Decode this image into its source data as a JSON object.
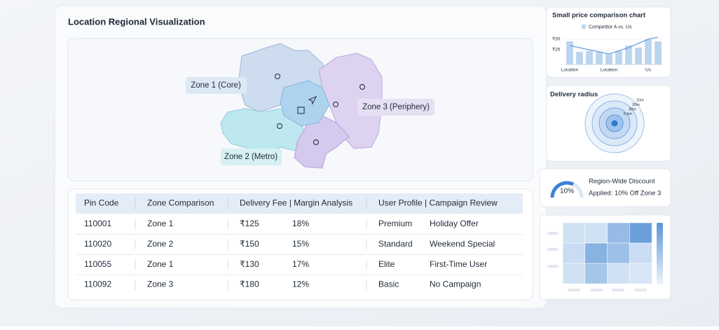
{
  "title": "Location Regional Visualization",
  "map": {
    "zones": [
      {
        "label": "Zone 1 (Core)"
      },
      {
        "label": "Zone 2 (Metro)"
      },
      {
        "label": "Zone 3 (Periphery)"
      }
    ]
  },
  "table": {
    "headers": [
      "Pin Code",
      "Zone Comparison",
      "Delivery Fee | Margin Analysis",
      "User Profile | Campaign Review"
    ],
    "rows": [
      [
        "110001",
        "Zone 1",
        "₹125",
        "18%",
        "Premium",
        "Holiday Offer"
      ],
      [
        "110020",
        "Zone 2",
        "₹150",
        "15%",
        "Standard",
        "Weekend Special"
      ],
      [
        "110055",
        "Zone 1",
        "₹130",
        "17%",
        "Elite",
        "First-Time User"
      ],
      [
        "110092",
        "Zone 3",
        "₹180",
        "12%",
        "Basic",
        "No Campaign"
      ]
    ]
  },
  "price_chart": {
    "type": "bar",
    "title": "Small price comparison chart",
    "categories": [
      "Location",
      null,
      null,
      null,
      "Location",
      null,
      null,
      null,
      "Us",
      null
    ],
    "series": [
      {
        "name": "Competitor A vs. Us",
        "color": "#bcd5ef",
        "values": [
          29,
          24,
          24.5,
          24,
          23,
          24.5,
          27,
          26,
          30,
          29
        ]
      },
      {
        "color": "#6f9fd8",
        "values": [
          27,
          26,
          25,
          24,
          23,
          24.5,
          26,
          28,
          30,
          31
        ]
      }
    ],
    "ylim": [
      18,
      32
    ],
    "yticks": [
      {
        "value": 25,
        "label": "₹25"
      },
      {
        "value": 30,
        "label": "₹30"
      }
    ]
  },
  "delivery_radius": {
    "title": "Delivery radius",
    "rings": [
      "10m",
      "20m",
      "30m",
      "5 km"
    ]
  },
  "discount": {
    "gauge": "10%",
    "title": "Region-Wide Discount",
    "detail": "Applied: 10% Off Zone 3"
  },
  "heatmap": {
    "values": [
      [
        0.2,
        0.2,
        0.6,
        0.9
      ],
      [
        0.25,
        0.7,
        0.55,
        0.25
      ],
      [
        0.2,
        0.5,
        0.2,
        0.15
      ]
    ]
  }
}
